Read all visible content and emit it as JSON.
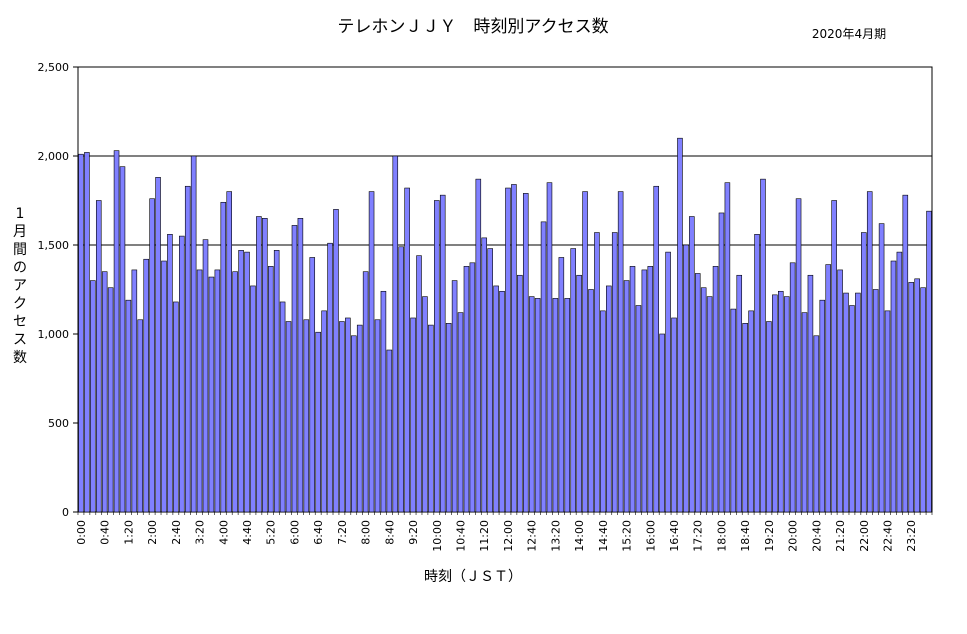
{
  "chart_data": {
    "type": "bar",
    "title": "テレホンＪＪＹ　時刻別アクセス数",
    "period_label": "2020年4月期",
    "xlabel": "時刻（ＪＳＴ）",
    "ylabel": "1月間のアクセス数",
    "ylim": [
      0,
      2500
    ],
    "yticks": [
      0,
      500,
      1000,
      1500,
      2000,
      2500
    ],
    "ytick_labels": [
      "0",
      "500",
      "1,000",
      "1,500",
      "2,000",
      "2,500"
    ],
    "grid_lines_at": [
      1500,
      2000
    ],
    "bar_color": "#8080ff",
    "bar_edge_color": "#000000",
    "x_tick_labels": [
      "0:00",
      "0:40",
      "1:20",
      "2:00",
      "2:40",
      "3:20",
      "4:00",
      "4:40",
      "5:20",
      "6:00",
      "6:40",
      "7:20",
      "8:00",
      "8:40",
      "9:20",
      "10:00",
      "10:40",
      "11:20",
      "12:00",
      "12:40",
      "13:20",
      "14:00",
      "14:40",
      "15:20",
      "16:00",
      "16:40",
      "17:20",
      "18:00",
      "18:40",
      "19:20",
      "20:00",
      "20:40",
      "21:20",
      "22:00",
      "22:40",
      "23:20"
    ],
    "categories_note": "144 bars at 10-minute intervals from 0:00 to 23:50",
    "values": [
      2010,
      2020,
      1300,
      1750,
      1350,
      1260,
      2030,
      1940,
      1190,
      1360,
      1080,
      1420,
      1760,
      1880,
      1410,
      1560,
      1180,
      1550,
      1830,
      2000,
      1360,
      1530,
      1320,
      1360,
      1740,
      1800,
      1350,
      1470,
      1460,
      1270,
      1660,
      1650,
      1380,
      1470,
      1180,
      1070,
      1610,
      1650,
      1080,
      1430,
      1010,
      1130,
      1510,
      1700,
      1070,
      1090,
      990,
      1050,
      1350,
      1800,
      1080,
      1240,
      910,
      2000,
      1490,
      1820,
      1090,
      1440,
      1210,
      1050,
      1750,
      1780,
      1060,
      1300,
      1120,
      1380,
      1400,
      1870,
      1540,
      1480,
      1270,
      1240,
      1820,
      1840,
      1330,
      1790,
      1210,
      1200,
      1630,
      1850,
      1200,
      1430,
      1200,
      1480,
      1330,
      1800,
      1250,
      1570,
      1130,
      1270,
      1570,
      1800,
      1300,
      1380,
      1160,
      1360,
      1380,
      1830,
      1000,
      1460,
      1090,
      2100,
      1500,
      1660,
      1340,
      1260,
      1210,
      1380,
      1680,
      1850,
      1140,
      1330,
      1060,
      1130,
      1560,
      1870,
      1070,
      1220,
      1240,
      1210,
      1400,
      1760,
      1120,
      1330,
      990,
      1190,
      1390,
      1750,
      1360,
      1230,
      1160,
      1230,
      1570,
      1800,
      1250,
      1620,
      1130,
      1410,
      1460,
      1780,
      1290,
      1310,
      1260,
      1690
    ]
  }
}
